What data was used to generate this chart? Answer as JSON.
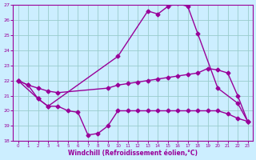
{
  "background_color": "#cceeff",
  "grid_color": "#99cccc",
  "line_color": "#990099",
  "xlabel": "Windchill (Refroidissement éolien,°C)",
  "xlim": [
    -0.5,
    23.5
  ],
  "ylim": [
    18,
    27
  ],
  "yticks": [
    18,
    19,
    20,
    21,
    22,
    23,
    24,
    25,
    26,
    27
  ],
  "xticks": [
    0,
    1,
    2,
    3,
    4,
    5,
    6,
    7,
    8,
    9,
    10,
    11,
    12,
    13,
    14,
    15,
    16,
    17,
    18,
    19,
    20,
    21,
    22,
    23
  ],
  "line1_x": [
    0,
    2,
    3,
    10,
    13,
    14,
    15,
    16,
    17,
    18,
    20,
    22,
    23
  ],
  "line1_y": [
    22.0,
    20.8,
    20.3,
    23.6,
    26.6,
    26.4,
    26.9,
    27.1,
    26.9,
    25.1,
    21.5,
    20.5,
    19.3
  ],
  "line2_x": [
    0,
    1,
    2,
    3,
    4,
    9,
    10,
    11,
    12,
    13,
    14,
    15,
    16,
    17,
    18,
    19,
    20,
    21,
    22,
    23
  ],
  "line2_y": [
    22.0,
    21.7,
    21.5,
    21.3,
    21.2,
    21.5,
    21.7,
    21.8,
    21.9,
    22.0,
    22.1,
    22.2,
    22.3,
    22.4,
    22.5,
    22.8,
    22.7,
    22.5,
    21.0,
    19.3
  ],
  "line3_x": [
    0,
    1,
    2,
    3,
    4,
    5,
    6,
    7,
    8,
    9,
    10,
    11,
    12,
    13,
    14,
    15,
    16,
    17,
    18,
    19,
    20,
    21,
    22,
    23
  ],
  "line3_y": [
    22.0,
    21.7,
    20.8,
    20.3,
    20.3,
    20.0,
    19.9,
    18.4,
    18.5,
    19.0,
    20.0,
    20.0,
    20.0,
    20.0,
    20.0,
    20.0,
    20.0,
    20.0,
    20.0,
    20.0,
    20.0,
    19.8,
    19.5,
    19.3
  ],
  "marker": "D",
  "markersize": 2.5,
  "linewidth": 1.0
}
